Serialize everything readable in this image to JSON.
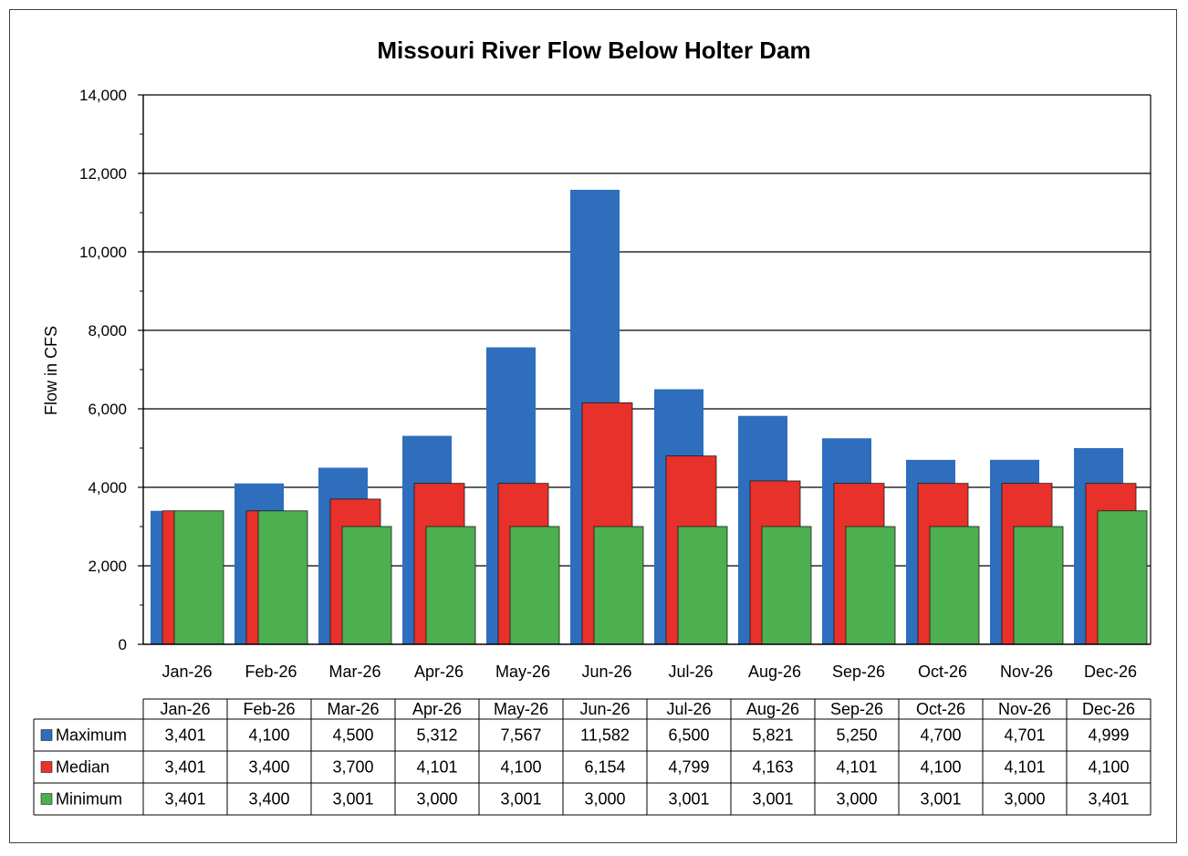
{
  "chart_data": {
    "type": "bar",
    "title": "Missouri River Flow Below Holter Dam",
    "xlabel": "",
    "ylabel": "Flow in CFS",
    "ylim": [
      0,
      14000
    ],
    "yticks": [
      0,
      2000,
      4000,
      6000,
      8000,
      10000,
      12000,
      14000
    ],
    "ytick_labels": [
      "0",
      "2,000",
      "4,000",
      "6,000",
      "8,000",
      "10,000",
      "12,000",
      "14,000"
    ],
    "grid": true,
    "categories": [
      "Jan-26",
      "Feb-26",
      "Mar-26",
      "Apr-26",
      "May-26",
      "Jun-26",
      "Jul-26",
      "Aug-26",
      "Sep-26",
      "Oct-26",
      "Nov-26",
      "Dec-26"
    ],
    "series": [
      {
        "name": "Maximum",
        "color": "#2E6EBD",
        "values": [
          3401,
          4100,
          4500,
          5312,
          7567,
          11582,
          6500,
          5821,
          5250,
          4700,
          4701,
          4999
        ],
        "labels": [
          "3,401",
          "4,100",
          "4,500",
          "5,312",
          "7,567",
          "11,582",
          "6,500",
          "5,821",
          "5,250",
          "4,700",
          "4,701",
          "4,999"
        ]
      },
      {
        "name": "Median",
        "color": "#E8312A",
        "values": [
          3401,
          3400,
          3700,
          4101,
          4100,
          6154,
          4799,
          4163,
          4101,
          4100,
          4101,
          4100
        ],
        "labels": [
          "3,401",
          "3,400",
          "3,700",
          "4,101",
          "4,100",
          "6,154",
          "4,799",
          "4,163",
          "4,101",
          "4,100",
          "4,101",
          "4,100"
        ]
      },
      {
        "name": "Minimum",
        "color": "#4CAF50",
        "values": [
          3401,
          3400,
          3001,
          3000,
          3001,
          3000,
          3001,
          3001,
          3000,
          3001,
          3000,
          3401
        ],
        "labels": [
          "3,401",
          "3,400",
          "3,001",
          "3,000",
          "3,001",
          "3,000",
          "3,001",
          "3,001",
          "3,000",
          "3,001",
          "3,000",
          "3,401"
        ]
      }
    ],
    "data_table": true
  }
}
